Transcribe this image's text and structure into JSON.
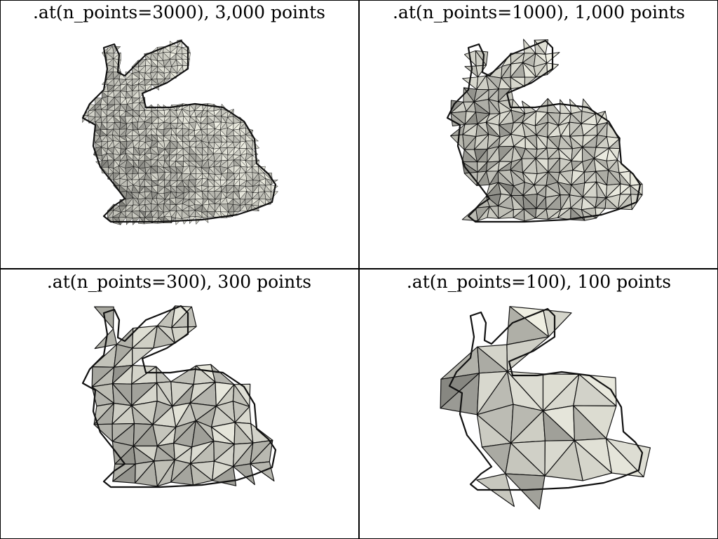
{
  "panels": [
    {
      "title": ".at(n_points=3000), 3,000 points",
      "n_points": 3000,
      "point_count": "3,000"
    },
    {
      "title": ".at(n_points=1000), 1,000 points",
      "n_points": 1000,
      "point_count": "1,000"
    },
    {
      "title": ".at(n_points=300), 300 points",
      "n_points": 300,
      "point_count": "300"
    },
    {
      "title": ".at(n_points=100), 100 points",
      "n_points": 100,
      "point_count": "100"
    }
  ],
  "colors": {
    "background": "#ffffff",
    "border": "#000000",
    "mesh_light": "#f4f4e8",
    "mesh_mid": "#b8b8b0",
    "mesh_dark": "#5a5a56",
    "edge": "#111111"
  }
}
